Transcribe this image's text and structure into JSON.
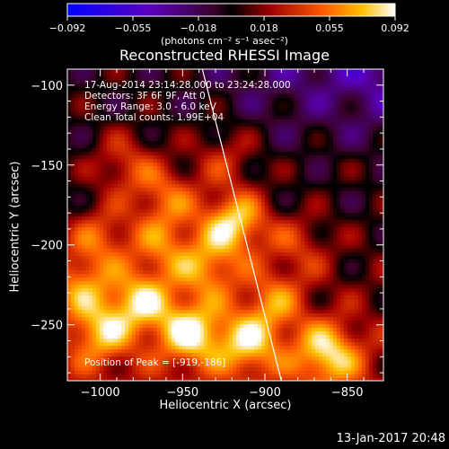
{
  "colorbar": {
    "ticks": [
      "-0.092",
      "-0.055",
      "-0.018",
      "0.018",
      "0.055",
      "0.092"
    ],
    "title": "(photons cm⁻² s⁻¹ asec⁻²)"
  },
  "plot": {
    "title": "Reconstructed RHESSI Image",
    "annotations": [
      "17-Aug-2014 23:14:28.000 to 23:24:28.000",
      "Detectors: 3F 6F 9F, Att 0",
      "Energy Range: 3.0 - 6.0 keV",
      "Clean     Total counts: 1.99E+04"
    ],
    "peak_label": "Position of Peak = [-919,-186]"
  },
  "footer": {
    "date": "13-Jan-2017 20:48"
  },
  "chart_data": {
    "type": "heatmap",
    "title": "Reconstructed RHESSI Image",
    "xlabel": "Heliocentric X (arcsec)",
    "ylabel": "Heliocentric Y (arcsec)",
    "xlim": [
      -1020,
      -828
    ],
    "ylim": [
      -285,
      -90
    ],
    "x_ticks": [
      -1000,
      -950,
      -900,
      -850
    ],
    "y_ticks": [
      -100,
      -150,
      -200,
      -250
    ],
    "x_tick_labels": [
      "−1000",
      "−950",
      "−900",
      "−850"
    ],
    "y_tick_labels": [
      "−100",
      "−150",
      "−200",
      "−250"
    ],
    "colorbar_range": [
      -0.092,
      0.092
    ],
    "colormap": "red-temperature",
    "peak_position": [
      -919,
      -186
    ],
    "limb_line": [
      [
        -938,
        -90
      ],
      [
        -890,
        -285
      ]
    ],
    "blobs": [
      {
        "x": -919,
        "y": -186,
        "value": 0.092
      },
      {
        "x": -945,
        "y": -255,
        "value": 0.085
      },
      {
        "x": -975,
        "y": -235,
        "value": 0.075
      },
      {
        "x": -910,
        "y": -262,
        "value": 0.07
      },
      {
        "x": -862,
        "y": -268,
        "value": 0.08
      },
      {
        "x": -1000,
        "y": -255,
        "value": 0.065
      },
      {
        "x": -1000,
        "y": -195,
        "value": 0.05
      },
      {
        "x": -985,
        "y": -150,
        "value": 0.045
      },
      {
        "x": -960,
        "y": -170,
        "value": 0.055
      },
      {
        "x": -935,
        "y": -215,
        "value": 0.06
      },
      {
        "x": -895,
        "y": -235,
        "value": 0.05
      },
      {
        "x": -1012,
        "y": -225,
        "value": 0.055
      },
      {
        "x": -962,
        "y": -200,
        "value": 0.05
      },
      {
        "x": -925,
        "y": -145,
        "value": 0.035
      },
      {
        "x": -880,
        "y": -200,
        "value": 0.035
      }
    ]
  }
}
